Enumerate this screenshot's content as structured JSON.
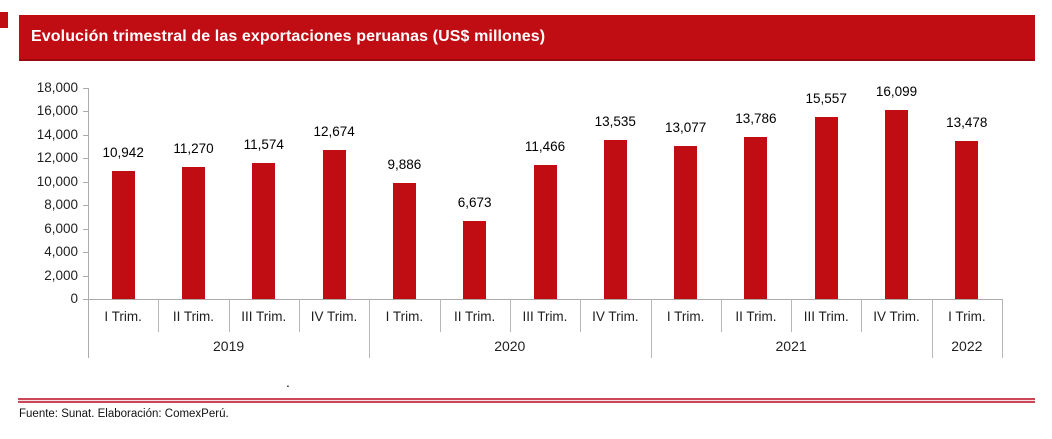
{
  "accent_color": "#c00d14",
  "title": "Evolución trimestral de las exportaciones peruanas (US$ millones)",
  "stray_dot": ".",
  "footer": {
    "source": "Fuente: Sunat. Elaboración: ComexPerú."
  },
  "chart_data": {
    "type": "bar",
    "title": "Evolución trimestral de las exportaciones peruanas (US$ millones)",
    "ylabel": "",
    "xlabel": "",
    "ylim": [
      0,
      18000
    ],
    "y_tick_step": 2000,
    "grid": false,
    "legend": false,
    "bar_color": "#c00d14",
    "axis_color": "#ababab",
    "data_label_position": "above",
    "groups": [
      {
        "year": "2019",
        "categories": [
          "I Trim.",
          "II Trim.",
          "III Trim.",
          "IV Trim."
        ],
        "values": [
          10942,
          11270,
          11574,
          12674
        ]
      },
      {
        "year": "2020",
        "categories": [
          "I Trim.",
          "II Trim.",
          "III Trim.",
          "IV Trim."
        ],
        "values": [
          9886,
          6673,
          11466,
          13535
        ]
      },
      {
        "year": "2021",
        "categories": [
          "I Trim.",
          "II Trim.",
          "III Trim.",
          "IV Trim."
        ],
        "values": [
          13077,
          13786,
          15557,
          16099
        ]
      },
      {
        "year": "2022",
        "categories": [
          "I Trim."
        ],
        "values": [
          13478
        ]
      }
    ]
  }
}
